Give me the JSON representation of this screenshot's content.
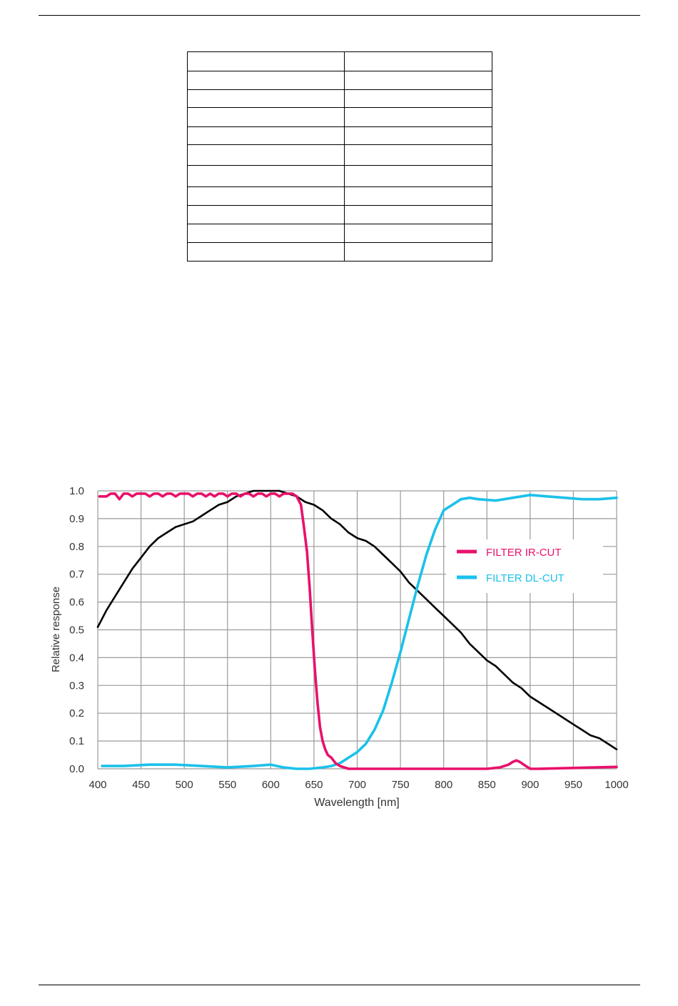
{
  "table": {
    "row_heights": [],
    "rows": [
      [
        "",
        ""
      ],
      [
        "",
        ""
      ],
      [
        "",
        ""
      ],
      [
        "",
        ""
      ],
      [
        "",
        ""
      ],
      [
        "",
        ""
      ],
      [
        "",
        ""
      ],
      [
        "",
        ""
      ],
      [
        "",
        ""
      ],
      [
        "",
        ""
      ],
      [
        "",
        ""
      ]
    ]
  },
  "chart_data": {
    "type": "line",
    "title": "",
    "xlabel": "Wavelength [nm]",
    "ylabel": "Relative response",
    "xlim": [
      400,
      1000
    ],
    "ylim": [
      0.0,
      1.0
    ],
    "xticks": [
      "400",
      "450",
      "500",
      "550",
      "600",
      "650",
      "700",
      "750",
      "800",
      "850",
      "900",
      "950",
      "1000"
    ],
    "yticks": [
      "0.0",
      "0.1",
      "0.2",
      "0.3",
      "0.4",
      "0.5",
      "0.6",
      "0.7",
      "0.8",
      "0.9",
      "1.0"
    ],
    "grid": true,
    "legend_position": "upper-right",
    "series": [
      {
        "name": "FILTER IR-CUT",
        "color": "#e8116b",
        "x": [
          402,
          410,
          415,
          420,
          425,
          430,
          435,
          440,
          445,
          450,
          455,
          460,
          465,
          470,
          475,
          480,
          485,
          490,
          495,
          500,
          505,
          510,
          515,
          520,
          525,
          530,
          535,
          540,
          545,
          550,
          555,
          560,
          565,
          570,
          575,
          580,
          585,
          590,
          595,
          600,
          605,
          610,
          615,
          620,
          625,
          630,
          635,
          638,
          642,
          645,
          648,
          651,
          654,
          657,
          660,
          663,
          666,
          670,
          675,
          680,
          690,
          700,
          720,
          750,
          800,
          850,
          865,
          875,
          880,
          884,
          888,
          895,
          900,
          905,
          910,
          950,
          1000
        ],
        "y": [
          0.98,
          0.98,
          0.99,
          0.99,
          0.97,
          0.99,
          0.99,
          0.98,
          0.99,
          0.99,
          0.99,
          0.98,
          0.99,
          0.99,
          0.98,
          0.99,
          0.99,
          0.98,
          0.99,
          0.99,
          0.99,
          0.98,
          0.99,
          0.99,
          0.98,
          0.99,
          0.98,
          0.99,
          0.99,
          0.98,
          0.99,
          0.99,
          0.98,
          0.99,
          0.99,
          0.98,
          0.99,
          0.99,
          0.98,
          0.99,
          0.99,
          0.98,
          0.99,
          0.99,
          0.99,
          0.98,
          0.95,
          0.88,
          0.78,
          0.65,
          0.5,
          0.36,
          0.24,
          0.15,
          0.1,
          0.07,
          0.05,
          0.04,
          0.02,
          0.01,
          0.0,
          0.0,
          0.0,
          0.0,
          0.0,
          0.0,
          0.005,
          0.015,
          0.025,
          0.03,
          0.025,
          0.01,
          0.0,
          0.0,
          0.0,
          0.003,
          0.007
        ]
      },
      {
        "name": "FILTER DL-CUT",
        "color": "#1bc1ea",
        "x": [
          405,
          430,
          460,
          490,
          520,
          550,
          580,
          600,
          615,
          630,
          645,
          660,
          670,
          680,
          690,
          700,
          710,
          720,
          730,
          740,
          750,
          760,
          770,
          780,
          790,
          800,
          810,
          820,
          830,
          840,
          860,
          880,
          900,
          920,
          940,
          960,
          980,
          1000
        ],
        "y": [
          0.01,
          0.01,
          0.015,
          0.015,
          0.01,
          0.005,
          0.01,
          0.015,
          0.005,
          0.0,
          0.0,
          0.005,
          0.01,
          0.02,
          0.04,
          0.06,
          0.09,
          0.14,
          0.21,
          0.31,
          0.42,
          0.54,
          0.66,
          0.77,
          0.86,
          0.93,
          0.95,
          0.97,
          0.975,
          0.97,
          0.965,
          0.975,
          0.985,
          0.98,
          0.975,
          0.97,
          0.97,
          0.975
        ]
      },
      {
        "name": "",
        "color": "#000000",
        "x": [
          400,
          410,
          420,
          430,
          440,
          450,
          460,
          470,
          480,
          490,
          500,
          510,
          520,
          530,
          540,
          550,
          560,
          570,
          580,
          590,
          600,
          610,
          620,
          630,
          640,
          650,
          660,
          670,
          680,
          690,
          700,
          710,
          720,
          730,
          740,
          750,
          760,
          770,
          780,
          790,
          800,
          810,
          820,
          830,
          840,
          850,
          860,
          870,
          880,
          890,
          900,
          910,
          920,
          930,
          940,
          950,
          960,
          970,
          980,
          990,
          1000
        ],
        "y": [
          0.51,
          0.57,
          0.62,
          0.67,
          0.72,
          0.76,
          0.8,
          0.83,
          0.85,
          0.87,
          0.88,
          0.89,
          0.91,
          0.93,
          0.95,
          0.96,
          0.98,
          0.99,
          1.0,
          1.0,
          1.0,
          1.0,
          0.99,
          0.98,
          0.96,
          0.95,
          0.93,
          0.9,
          0.88,
          0.85,
          0.83,
          0.82,
          0.8,
          0.77,
          0.74,
          0.71,
          0.67,
          0.64,
          0.61,
          0.58,
          0.55,
          0.52,
          0.49,
          0.45,
          0.42,
          0.39,
          0.37,
          0.34,
          0.31,
          0.29,
          0.26,
          0.24,
          0.22,
          0.2,
          0.18,
          0.16,
          0.14,
          0.12,
          0.11,
          0.09,
          0.07
        ]
      }
    ]
  }
}
